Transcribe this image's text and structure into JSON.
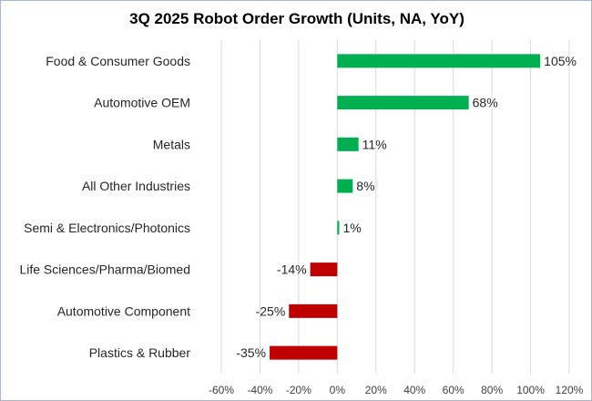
{
  "chart_data": {
    "type": "bar",
    "orientation": "horizontal",
    "title": "3Q 2025 Robot Order Growth (Units, NA, YoY)",
    "categories": [
      "Food & Consumer Goods",
      "Automotive OEM",
      "Metals",
      "All Other Industries",
      "Semi & Electronics/Photonics",
      "Life Sciences/Pharma/Biomed",
      "Automotive Component",
      "Plastics & Rubber"
    ],
    "values": [
      105,
      68,
      11,
      8,
      1,
      -14,
      -25,
      -35
    ],
    "data_labels": [
      "105%",
      "68%",
      "11%",
      "8%",
      "1%",
      "-14%",
      "-25%",
      "-35%"
    ],
    "xlim": [
      -60,
      120
    ],
    "x_ticks": [
      -60,
      -40,
      -20,
      0,
      20,
      40,
      60,
      80,
      100,
      120
    ],
    "x_tick_labels": [
      "-60%",
      "-40%",
      "-20%",
      "0%",
      "20%",
      "40%",
      "60%",
      "80%",
      "100%",
      "120%"
    ],
    "grid": "vertical",
    "legend": "none",
    "colors": {
      "positive": "#00b050",
      "negative": "#c00000",
      "grid": "#d9d9d9",
      "border": "#a9b7d3"
    }
  }
}
